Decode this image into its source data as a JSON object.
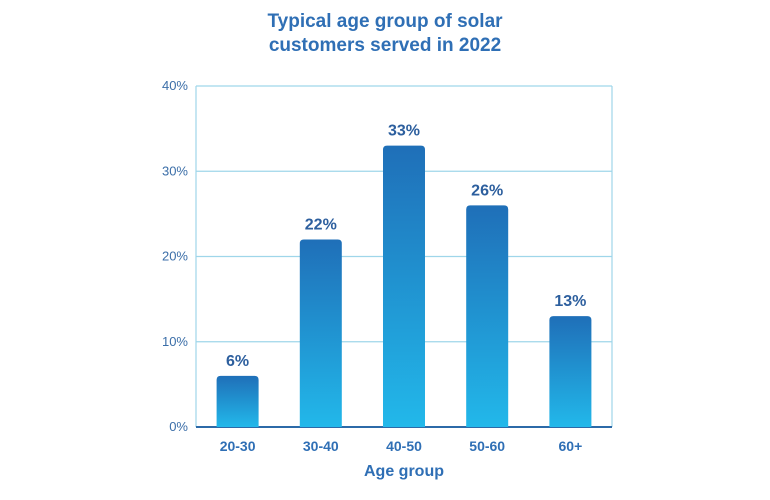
{
  "chart_data": {
    "type": "bar",
    "title_lines": [
      "Typical age group of solar",
      "customers served in 2022"
    ],
    "xlabel": "Age group",
    "ylabel": "",
    "categories": [
      "20-30",
      "30-40",
      "40-50",
      "50-60",
      "60+"
    ],
    "values": [
      6,
      22,
      33,
      26,
      13
    ],
    "data_labels": [
      "6%",
      "22%",
      "33%",
      "26%",
      "13%"
    ],
    "ylim": [
      0,
      40
    ],
    "yticks": [
      0,
      10,
      20,
      30,
      40
    ],
    "ytick_labels": [
      "0%",
      "10%",
      "20%",
      "30%",
      "40%"
    ],
    "grid": true,
    "legend": "none",
    "colors": {
      "bar_top": "#1f6fb8",
      "bar_bottom": "#22b8ea",
      "grid": "#9fd6ea",
      "axis": "#2c6aa8",
      "text": "#2f6fb5"
    }
  }
}
